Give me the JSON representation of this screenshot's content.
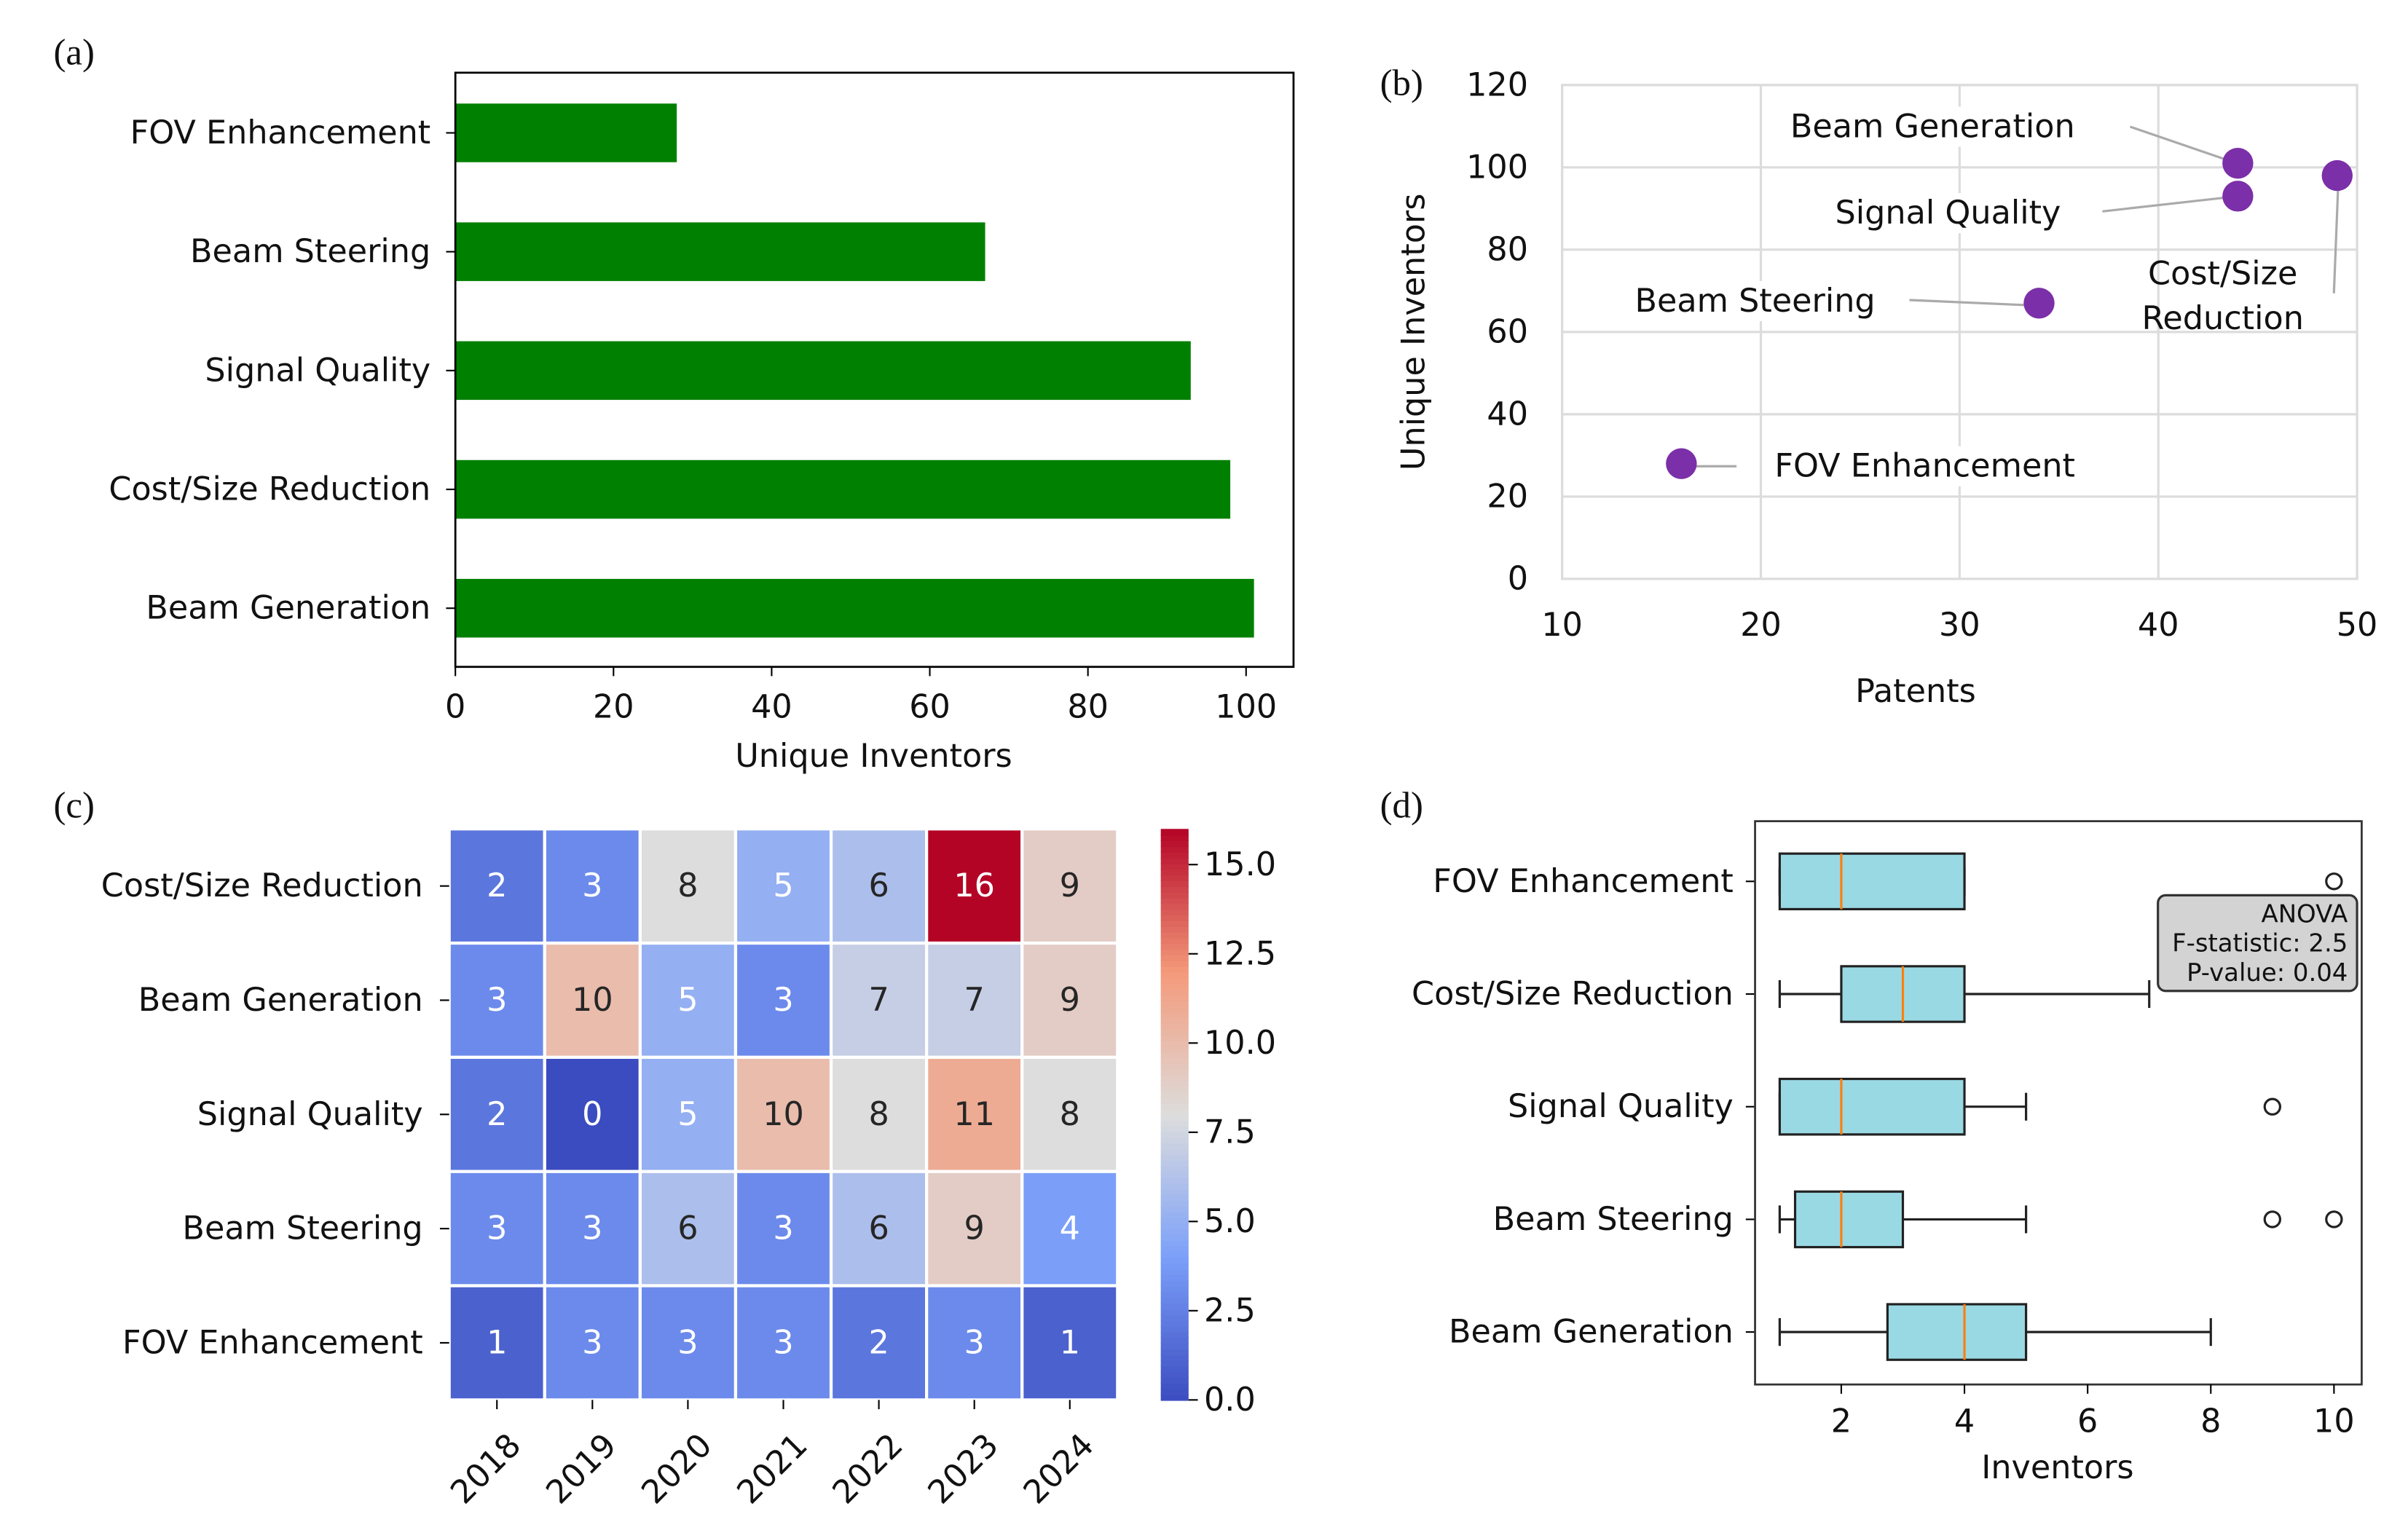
{
  "panel_labels": [
    "(a)",
    "(b)",
    "(c)",
    "(d)"
  ],
  "chart_data": [
    {
      "panel": "(a)",
      "type": "bar",
      "orientation": "horizontal",
      "categories": [
        "FOV Enhancement",
        "Beam Steering",
        "Signal Quality",
        "Cost/Size Reduction",
        "Beam Generation"
      ],
      "values": [
        28,
        67,
        93,
        98,
        101
      ],
      "xlabel": "Unique Inventors",
      "xlim": [
        0,
        106
      ],
      "xticks": [
        0,
        20,
        40,
        60,
        80,
        100
      ],
      "color": "#008000",
      "grid": false
    },
    {
      "panel": "(b)",
      "type": "scatter",
      "points": [
        {
          "label": "Beam Generation",
          "x": 44,
          "y": 101
        },
        {
          "label": "Signal Quality",
          "x": 44,
          "y": 93
        },
        {
          "label": "Cost/Size Reduction",
          "x": 49,
          "y": 98
        },
        {
          "label": "Beam Steering",
          "x": 34,
          "y": 67
        },
        {
          "label": "FOV Enhancement",
          "x": 16,
          "y": 28
        }
      ],
      "xlabel": "Patents",
      "ylabel": "Unique Inventors",
      "xlim": [
        10,
        50
      ],
      "ylim": [
        0,
        120
      ],
      "xticks": [
        10,
        20,
        30,
        40,
        50
      ],
      "yticks": [
        0,
        20,
        40,
        60,
        80,
        100,
        120
      ],
      "color": "#7b2fa8",
      "grid": true
    },
    {
      "panel": "(c)",
      "type": "heatmap",
      "rows": [
        "Cost/Size Reduction",
        "Beam Generation",
        "Signal Quality",
        "Beam Steering",
        "FOV Enhancement"
      ],
      "columns": [
        "2018",
        "2019",
        "2020",
        "2021",
        "2022",
        "2023",
        "2024"
      ],
      "values": [
        [
          2,
          3,
          8,
          5,
          6,
          16,
          9
        ],
        [
          3,
          10,
          5,
          3,
          7,
          7,
          9
        ],
        [
          2,
          0,
          5,
          10,
          8,
          11,
          8
        ],
        [
          3,
          3,
          6,
          3,
          6,
          9,
          4
        ],
        [
          1,
          3,
          3,
          3,
          2,
          3,
          1
        ]
      ],
      "colormap": "coolwarm",
      "colorbar_range": [
        0,
        16
      ],
      "colorbar_ticks": [
        "0.0",
        "2.5",
        "5.0",
        "7.5",
        "10.0",
        "12.5",
        "15.0"
      ]
    },
    {
      "panel": "(d)",
      "type": "box",
      "orientation": "horizontal",
      "categories": [
        "FOV Enhancement",
        "Cost/Size Reduction",
        "Signal Quality",
        "Beam Steering",
        "Beam Generation"
      ],
      "boxes": [
        {
          "whislo": 1,
          "q1": 1,
          "med": 2,
          "q3": 4,
          "whishi": 4,
          "fliers": [
            10
          ]
        },
        {
          "whislo": 1,
          "q1": 2,
          "med": 3,
          "q3": 4,
          "whishi": 7,
          "fliers": []
        },
        {
          "whislo": 1,
          "q1": 1,
          "med": 2,
          "q3": 4,
          "whishi": 5,
          "fliers": [
            9
          ]
        },
        {
          "whislo": 1,
          "q1": 1.25,
          "med": 2,
          "q3": 3,
          "whishi": 5,
          "fliers": [
            9,
            10
          ]
        },
        {
          "whislo": 1,
          "q1": 2.75,
          "med": 4,
          "q3": 5,
          "whishi": 8,
          "fliers": []
        }
      ],
      "xlabel": "Inventors",
      "xlim": [
        0.6,
        10.45
      ],
      "xticks": [
        2,
        4,
        6,
        8,
        10
      ],
      "box_color": "#99d9e4",
      "median_color": "#ff7f0e",
      "annotation": [
        "ANOVA",
        "F-statistic: 2.5",
        "P-value: 0.04"
      ]
    }
  ]
}
